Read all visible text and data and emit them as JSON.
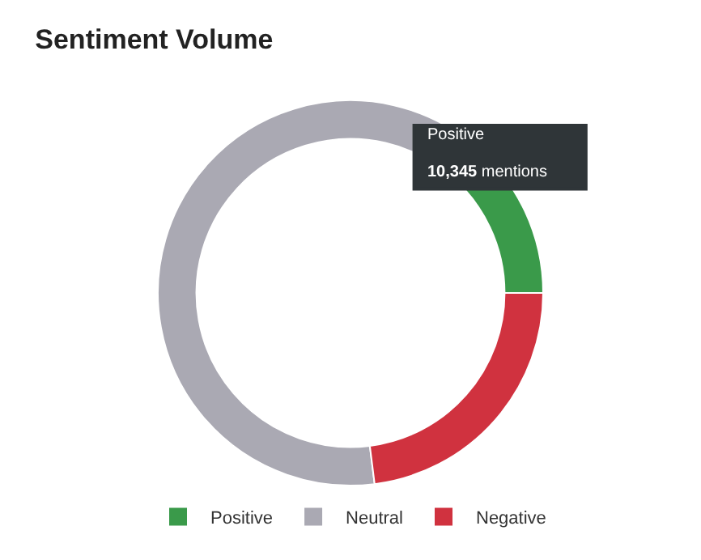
{
  "chart_data": {
    "type": "donut",
    "title": "Sentiment Volume",
    "categories": [
      "Positive",
      "Neutral",
      "Negative"
    ],
    "values": [
      14,
      63,
      23
    ],
    "colors": [
      "#3a9a4a",
      "#aaa9b3",
      "#d0323f"
    ],
    "legend": "bottom",
    "annotations": [
      "Positive",
      "10,345 mentions"
    ]
  }
}
